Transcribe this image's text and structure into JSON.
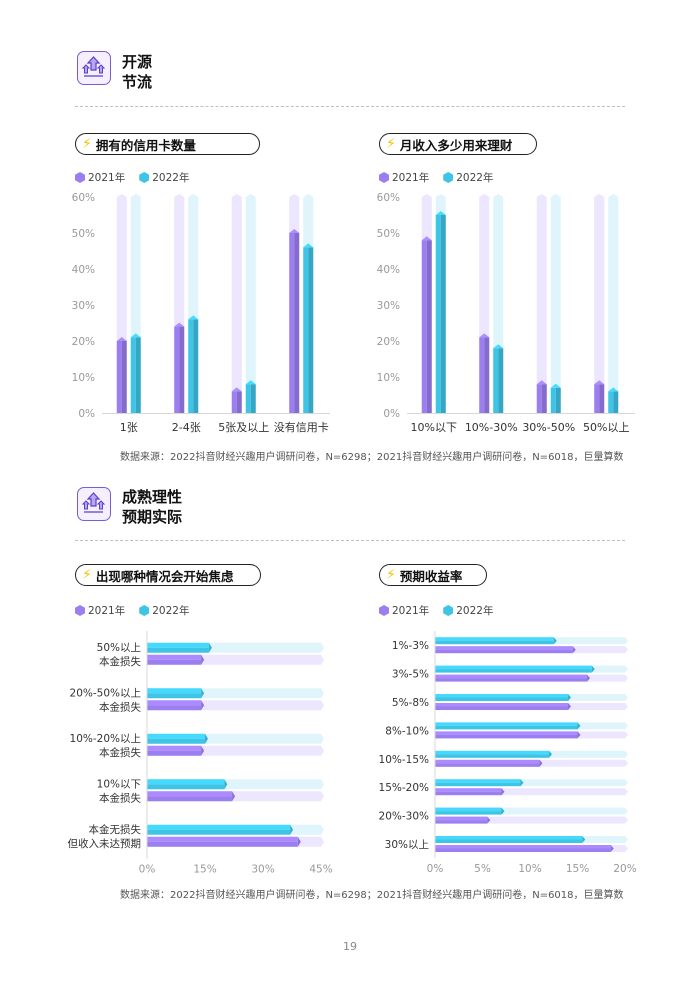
{
  "colors": {
    "y2021": "#9b7ef0",
    "y2021_bg": "#ece6ff",
    "y2022": "#3ec5e6",
    "y2022_bg": "#dff5fb",
    "accent": "#7a5cd6",
    "bolt": "#f5c400"
  },
  "section1": {
    "title_line1": "开源",
    "title_line2": "节流"
  },
  "section2": {
    "title_line1": "成熟理性",
    "title_line2": "预期实际"
  },
  "legend": {
    "y2021": "2021年",
    "y2022": "2022年"
  },
  "source_note_top": "数据来源：2022抖音财经兴趣用户调研问卷，N=6298；2021抖音财经兴趣用户调研问卷，N=6018，巨量算数",
  "source_note_bottom": "数据来源：2022抖音财经兴趣用户调研问卷，N=6298；2021抖音财经兴趣用户调研问卷，N=6018，巨量算数",
  "page_number": "19",
  "chart_data": [
    {
      "type": "bar",
      "title": "拥有的信用卡数量",
      "categories": [
        "1张",
        "2-4张",
        "5张及以上",
        "没有信用卡"
      ],
      "series": [
        {
          "name": "2021年",
          "values": [
            20,
            24,
            6,
            50
          ]
        },
        {
          "name": "2022年",
          "values": [
            21,
            26,
            8,
            46
          ]
        }
      ],
      "ylim": [
        0,
        60
      ],
      "yticks": [
        "0%",
        "10%",
        "20%",
        "30%",
        "40%",
        "50%",
        "60%"
      ],
      "legend": "top-left"
    },
    {
      "type": "bar",
      "title": "月收入多少用来理财",
      "categories": [
        "10%以下",
        "10%-30%",
        "30%-50%",
        "50%以上"
      ],
      "series": [
        {
          "name": "2021年",
          "values": [
            48,
            21,
            8,
            8
          ]
        },
        {
          "name": "2022年",
          "values": [
            55,
            18,
            7,
            6
          ]
        }
      ],
      "ylim": [
        0,
        60
      ],
      "yticks": [
        "0%",
        "10%",
        "20%",
        "30%",
        "40%",
        "50%",
        "60%"
      ],
      "legend": "top-left"
    },
    {
      "type": "bar",
      "orientation": "horizontal",
      "title": "出现哪种情况会开始焦虑",
      "categories": [
        [
          "50%以上",
          "本金损失"
        ],
        [
          "20%-50%以上",
          "本金损失"
        ],
        [
          "10%-20%以上",
          "本金损失"
        ],
        [
          "10%以下",
          "本金损失"
        ],
        [
          "本金无损失",
          "但收入未达预期"
        ]
      ],
      "series": [
        {
          "name": "2021年",
          "values": [
            14,
            14,
            14,
            22,
            39
          ]
        },
        {
          "name": "2022年",
          "values": [
            16,
            14,
            15,
            20,
            37
          ]
        }
      ],
      "xlim": [
        0,
        45
      ],
      "xticks": [
        "0%",
        "15%",
        "30%",
        "45%"
      ],
      "legend": "top-left"
    },
    {
      "type": "bar",
      "orientation": "horizontal",
      "title": "预期收益率",
      "categories": [
        "1%-3%",
        "3%-5%",
        "5%-8%",
        "8%-10%",
        "10%-15%",
        "15%-20%",
        "20%-30%",
        "30%以上"
      ],
      "series": [
        {
          "name": "2021年",
          "values": [
            14.5,
            16,
            14,
            15,
            11,
            7,
            5.5,
            18.5
          ]
        },
        {
          "name": "2022年",
          "values": [
            12.5,
            16.5,
            14,
            15,
            12,
            9,
            7,
            15.5
          ]
        }
      ],
      "xlim": [
        0,
        20
      ],
      "xticks": [
        "0%",
        "5%",
        "10%",
        "15%",
        "20%"
      ],
      "legend": "top-left"
    }
  ]
}
